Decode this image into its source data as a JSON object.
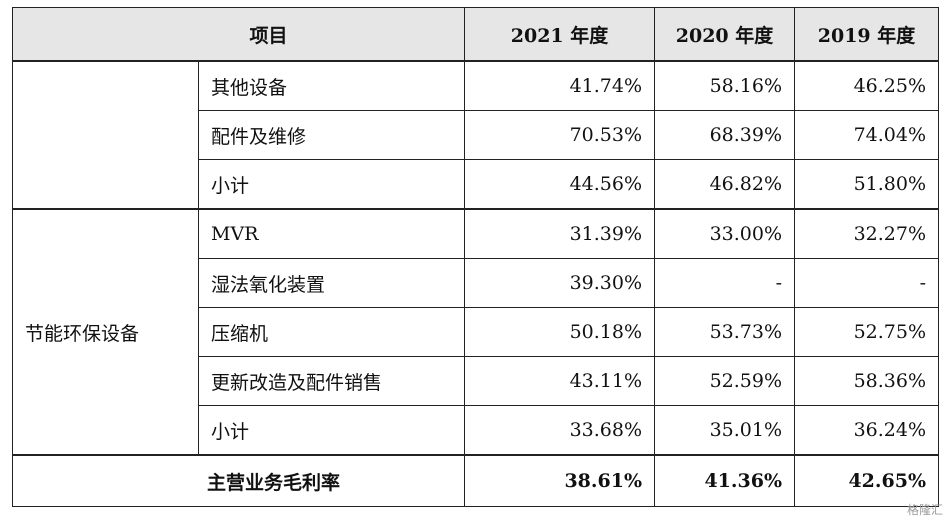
{
  "header": {
    "item": "项目",
    "years": [
      "2021 年度",
      "2020 年度",
      "2019 年度"
    ]
  },
  "groups": [
    {
      "name": "",
      "rows": [
        {
          "label": "其他设备",
          "values": [
            "41.74%",
            "58.16%",
            "46.25%"
          ]
        },
        {
          "label": "配件及维修",
          "values": [
            "70.53%",
            "68.39%",
            "74.04%"
          ]
        },
        {
          "label": "小计",
          "values": [
            "44.56%",
            "46.82%",
            "51.80%"
          ]
        }
      ]
    },
    {
      "name": "节能环保设备",
      "rows": [
        {
          "label": "MVR",
          "values": [
            "31.39%",
            "33.00%",
            "32.27%"
          ]
        },
        {
          "label": "湿法氧化装置",
          "values": [
            "39.30%",
            "-",
            "-"
          ]
        },
        {
          "label": "压缩机",
          "values": [
            "50.18%",
            "53.73%",
            "52.75%"
          ]
        },
        {
          "label": "更新改造及配件销售",
          "values": [
            "43.11%",
            "52.59%",
            "58.36%"
          ]
        },
        {
          "label": "小计",
          "values": [
            "33.68%",
            "35.01%",
            "36.24%"
          ]
        }
      ]
    }
  ],
  "total": {
    "label": "主营业务毛利率",
    "values": [
      "38.61%",
      "41.36%",
      "42.65%"
    ]
  },
  "watermark": "格隆汇"
}
